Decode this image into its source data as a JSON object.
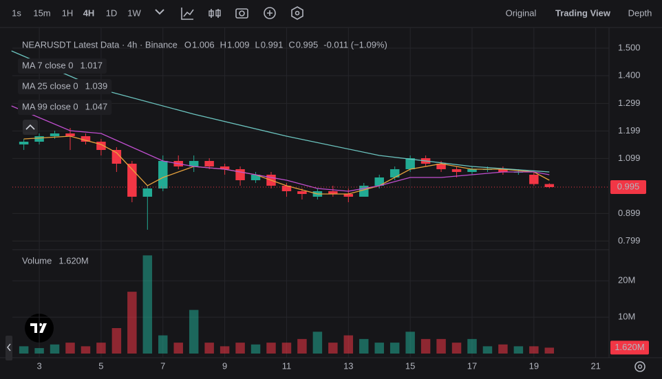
{
  "toolbar": {
    "intervals": [
      "1s",
      "15m",
      "1H",
      "4H",
      "1D",
      "1W"
    ],
    "active_interval": 3,
    "views": [
      "Original",
      "Trading View",
      "Depth"
    ],
    "active_view": 1
  },
  "chart_data": {
    "type": "candlestick",
    "title": "NEARUSDT Latest Data · 4h · Binance",
    "ohlc": [
      {
        "label": "O",
        "value": "1.006"
      },
      {
        "label": "H",
        "value": "1.009"
      },
      {
        "label": "L",
        "value": "0.991"
      },
      {
        "label": "C",
        "value": "0.995"
      }
    ],
    "change": "-0.011 (−1.09%)",
    "colors": {
      "up": "#22ab94",
      "down": "#f23645"
    },
    "x": [
      2.5,
      3,
      3.5,
      4,
      4.5,
      5,
      5.5,
      6,
      6.5,
      7,
      7.5,
      8,
      8.5,
      9,
      9.5,
      10,
      10.5,
      11,
      11.5,
      12,
      12.5,
      13,
      13.5,
      14,
      14.5,
      15,
      15.5,
      16,
      16.5,
      17,
      17.5,
      18,
      18.5,
      19,
      19.5
    ],
    "open": [
      1.15,
      1.16,
      1.18,
      1.19,
      1.18,
      1.16,
      1.13,
      1.08,
      0.96,
      0.99,
      1.09,
      1.07,
      1.09,
      1.07,
      1.06,
      1.02,
      1.04,
      1.0,
      0.98,
      0.96,
      0.98,
      0.97,
      0.96,
      1.0,
      1.03,
      1.06,
      1.1,
      1.08,
      1.06,
      1.05,
      1.06,
      1.06,
      1.05,
      1.04,
      1.006
    ],
    "high": [
      1.17,
      1.19,
      1.2,
      1.21,
      1.19,
      1.17,
      1.14,
      1.09,
      1.0,
      1.11,
      1.11,
      1.11,
      1.1,
      1.08,
      1.07,
      1.05,
      1.05,
      1.01,
      0.99,
      0.99,
      1.0,
      0.99,
      1.01,
      1.04,
      1.07,
      1.11,
      1.11,
      1.09,
      1.07,
      1.07,
      1.07,
      1.07,
      1.06,
      1.05,
      1.009
    ],
    "low": [
      1.13,
      1.15,
      1.17,
      1.13,
      1.15,
      1.11,
      1.05,
      0.94,
      0.84,
      0.98,
      1.06,
      1.05,
      1.06,
      1.04,
      1.0,
      1.01,
      0.99,
      0.96,
      0.95,
      0.95,
      0.96,
      0.94,
      0.96,
      0.99,
      1.02,
      1.05,
      1.07,
      1.05,
      1.03,
      1.04,
      1.05,
      1.04,
      1.04,
      1.0,
      0.991
    ],
    "close": [
      1.16,
      1.18,
      1.19,
      1.18,
      1.16,
      1.13,
      1.08,
      0.96,
      0.99,
      1.09,
      1.07,
      1.09,
      1.07,
      1.06,
      1.02,
      1.04,
      1.0,
      0.98,
      0.97,
      0.98,
      0.97,
      0.96,
      1.0,
      1.03,
      1.06,
      1.1,
      1.08,
      1.06,
      1.05,
      1.06,
      1.06,
      1.05,
      1.05,
      1.006,
      0.995
    ],
    "volume": [
      2,
      1.5,
      2.5,
      3,
      2,
      3,
      7,
      17,
      27,
      5,
      3,
      12,
      3,
      2,
      3,
      2.5,
      3,
      3,
      4,
      6,
      3,
      5,
      4,
      3,
      3,
      6,
      4,
      4,
      3,
      4,
      2,
      2.5,
      2,
      2,
      1.62
    ],
    "ma_series": [
      {
        "name": "MA 7 close 0",
        "value": "1.017",
        "color": "#e8a33d",
        "x": [
          2.5,
          4,
          5,
          5.5,
          6,
          6.5,
          7,
          8,
          9,
          10,
          11,
          12,
          13,
          14,
          15,
          16,
          17,
          18,
          19,
          19.5
        ],
        "values": [
          1.17,
          1.18,
          1.15,
          1.12,
          1.06,
          1.0,
          1.03,
          1.07,
          1.06,
          1.04,
          1.0,
          0.97,
          0.97,
          1.0,
          1.06,
          1.08,
          1.06,
          1.06,
          1.05,
          1.02
        ]
      },
      {
        "name": "MA 25 close 0",
        "value": "1.039",
        "color": "#c14fd0",
        "x": [
          2.1,
          4,
          5,
          6,
          7,
          8,
          9,
          10,
          11,
          12,
          13,
          14,
          15,
          16,
          17,
          18,
          19,
          19.5
        ],
        "values": [
          1.29,
          1.2,
          1.19,
          1.14,
          1.09,
          1.07,
          1.06,
          1.04,
          1.02,
          0.99,
          0.98,
          1.0,
          1.03,
          1.03,
          1.04,
          1.05,
          1.05,
          1.04
        ]
      },
      {
        "name": "MA 99 close 0",
        "value": "1.047",
        "color": "#6cc5c0",
        "x": [
          2.1,
          5,
          8,
          11,
          14,
          17,
          19.5
        ],
        "values": [
          1.49,
          1.35,
          1.26,
          1.18,
          1.11,
          1.07,
          1.05
        ]
      }
    ],
    "xlim": [
      2.13,
      21.43
    ],
    "xticks": [
      3,
      5,
      7,
      9,
      11,
      13,
      15,
      17,
      19,
      21
    ],
    "ylim": [
      0.77,
      1.57
    ],
    "yticks": [
      {
        "value": 1.5,
        "label": "1.500"
      },
      {
        "value": 1.4,
        "label": "1.400"
      },
      {
        "value": 1.299,
        "label": "1.299"
      },
      {
        "value": 1.199,
        "label": "1.199"
      },
      {
        "value": 1.099,
        "label": "1.099"
      },
      {
        "value": 0.899,
        "label": "0.899"
      },
      {
        "value": 0.799,
        "label": "0.799"
      }
    ],
    "last_price": {
      "value": 0.995,
      "label": "0.995"
    },
    "volume_label": "Volume",
    "volume_value": {
      "value": 1.62,
      "label": "1.620M"
    },
    "volume_lim": [
      0,
      28
    ],
    "volume_ticks": [
      {
        "value": 20,
        "label": "20M"
      },
      {
        "value": 10,
        "label": "10M"
      }
    ],
    "grid": true
  }
}
